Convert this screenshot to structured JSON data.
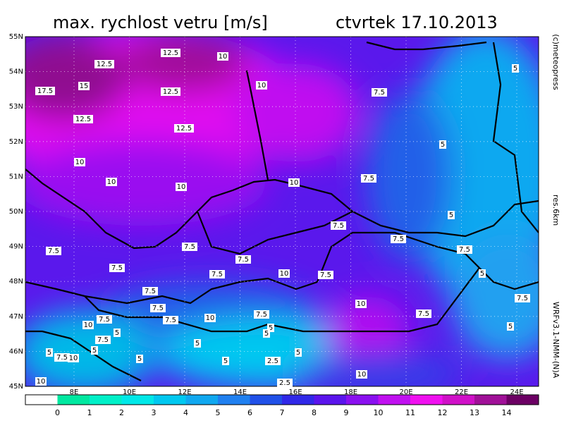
{
  "header": {
    "title": "max. rychlost vetru [m/s]",
    "date": "ctvrtek 17.10.2013"
  },
  "map": {
    "lat_labels": [
      "55N",
      "54N",
      "53N",
      "52N",
      "51N",
      "50N",
      "49N",
      "48N",
      "47N",
      "46N",
      "45N"
    ],
    "lon_labels": [
      "8E",
      "10E",
      "12E",
      "14E",
      "16E",
      "18E",
      "20E",
      "22E",
      "24E"
    ],
    "contour_labels": [
      "12.5",
      "10",
      "12.5",
      "15",
      "17.5",
      "12.5",
      "10",
      "7.5",
      "5",
      "12.5",
      "12.5",
      "5",
      "10",
      "10",
      "10",
      "10",
      "7.5",
      "5",
      "7.5",
      "7.5",
      "7.5",
      "7.5",
      "7.5",
      "7.5",
      "7.5",
      "10",
      "7.5",
      "7.5",
      "5",
      "7.5",
      "7.5",
      "7.5",
      "10",
      "7.5",
      "7.5",
      "10",
      "7.5",
      "7.5",
      "10",
      "5",
      "5",
      "5",
      "5",
      "7.5",
      "5",
      "5",
      "5",
      "7.5",
      "10",
      "5",
      "5",
      "2.5",
      "5",
      "10",
      "10",
      "2.5"
    ]
  },
  "side_notes": {
    "copyright": "(c)meteopress",
    "resolution": "res.6km",
    "model": "WRFv3.1-NMM-(N)A"
  },
  "colorbar": {
    "ticks": [
      0,
      1,
      2,
      3,
      4,
      5,
      6,
      7,
      8,
      9,
      10,
      11,
      12,
      13,
      14
    ],
    "colors": [
      "#ffffff",
      "#00e8a0",
      "#00f0c8",
      "#00e8e8",
      "#00c8f0",
      "#10a8f0",
      "#2080f0",
      "#2050e8",
      "#3028e8",
      "#5a14ec",
      "#8a10f0",
      "#c010f0",
      "#f010f0",
      "#d010c8",
      "#a01098",
      "#6c0064"
    ]
  }
}
